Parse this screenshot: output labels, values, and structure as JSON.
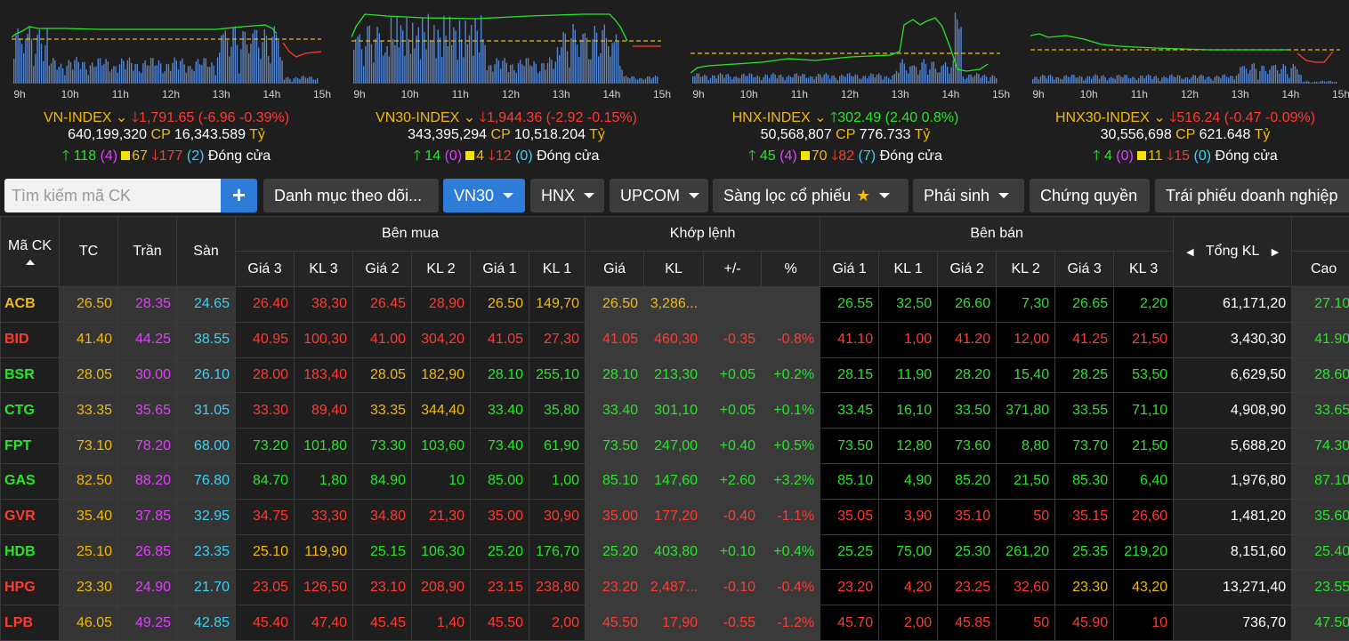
{
  "colors": {
    "ref": "#f0b90b",
    "ceil": "#e040fb",
    "floor": "#3fd0f5",
    "up": "#29e52a",
    "down": "#ff3b30",
    "accent": "#2f7bd8"
  },
  "indexes": [
    {
      "name": "VN-INDEX",
      "value": "1,791.65",
      "change": "(-6.96 -0.39%)",
      "dir": "down",
      "volume": "640,199,320",
      "cp_label": "CP",
      "value_bn": "16,343.589",
      "unit": "Tỷ",
      "adv": "118",
      "adv_ceil": "(4)",
      "unch": "67",
      "dec": "177",
      "dec_floor": "(2)",
      "status": "Đóng cửa",
      "ticks": [
        "9h",
        "10h",
        "11h",
        "12h",
        "13h",
        "14h",
        "15h"
      ]
    },
    {
      "name": "VN30-INDEX",
      "value": "1,944.36",
      "change": "(-2.92 -0.15%)",
      "dir": "down",
      "volume": "343,395,294",
      "cp_label": "CP",
      "value_bn": "10,518.204",
      "unit": "Tỷ",
      "adv": "14",
      "adv_ceil": "(0)",
      "unch": "4",
      "dec": "12",
      "dec_floor": "(0)",
      "status": "Đóng cửa",
      "ticks": [
        "9h",
        "10h",
        "11h",
        "12h",
        "13h",
        "14h",
        "15h"
      ]
    },
    {
      "name": "HNX-INDEX",
      "value": "302.49",
      "change": "(2.40 0.8%)",
      "dir": "up",
      "volume": "50,568,807",
      "cp_label": "CP",
      "value_bn": "776.733",
      "unit": "Tỷ",
      "adv": "45",
      "adv_ceil": "(4)",
      "unch": "70",
      "dec": "82",
      "dec_floor": "(7)",
      "status": "Đóng cửa",
      "ticks": [
        "9h",
        "10h",
        "11h",
        "12h",
        "13h",
        "14h",
        "15h"
      ]
    },
    {
      "name": "HNX30-INDEX",
      "value": "516.24",
      "change": "(-0.47 -0.09%)",
      "dir": "down",
      "volume": "30,556,698",
      "cp_label": "CP",
      "value_bn": "621.648",
      "unit": "Tỷ",
      "adv": "4",
      "adv_ceil": "(0)",
      "unch": "11",
      "dec": "15",
      "dec_floor": "(0)",
      "status": "Đóng cửa",
      "ticks": [
        "9h",
        "10h",
        "11h",
        "12h",
        "13h",
        "14h",
        "15h"
      ]
    }
  ],
  "toolbar": {
    "search_placeholder": "Tìm kiếm mã CK",
    "add_label": "+",
    "watchlist": "Danh mục theo dõi...",
    "vn30": "VN30",
    "hnx": "HNX",
    "upcom": "UPCOM",
    "screener": "Sàng lọc cổ phiếu",
    "derivatives": "Phái sinh",
    "warrants": "Chứng quyền",
    "bonds": "Trái phiếu doanh nghiệp"
  },
  "table": {
    "h_symbol": "Mã CK",
    "h_ref": "TC",
    "h_ceil": "Trần",
    "h_floor": "Sàn",
    "h_bid": "Bên mua",
    "h_match": "Khớp lệnh",
    "h_ask": "Bên bán",
    "h_total": "Tổng KL",
    "h_high": "Cao",
    "h_p3": "Giá 3",
    "h_v3": "KL 3",
    "h_p2": "Giá 2",
    "h_v2": "KL 2",
    "h_p1": "Giá 1",
    "h_v1": "KL 1",
    "h_mp": "Giá",
    "h_mv": "KL",
    "h_chg": "+/-",
    "h_pct": "%",
    "h_a1": "Giá 1",
    "h_av1": "KL 1",
    "h_a2": "Giá 2",
    "h_av2": "KL 2",
    "h_a3": "Giá 3",
    "h_av3": "KL 3",
    "rows": [
      {
        "sym": "ACB",
        "tc": "26.50",
        "tran": "28.35",
        "san": "24.65",
        "bp3": "26.40",
        "bv3": "38,30",
        "bp2": "26.45",
        "bv2": "28,90",
        "bp1": "26.50",
        "bv1": "149,70",
        "mp": "26.50",
        "mv": "3,286...",
        "chg": "",
        "pct": "",
        "ap1": "26.55",
        "av1": "32,50",
        "ap2": "26.60",
        "av2": "7,30",
        "ap3": "26.65",
        "av3": "2,20",
        "total": "61,171,20",
        "high": "27.10"
      },
      {
        "sym": "BID",
        "tc": "41.40",
        "tran": "44.25",
        "san": "38.55",
        "bp3": "40.95",
        "bv3": "100,30",
        "bp2": "41.00",
        "bv2": "304,20",
        "bp1": "41.05",
        "bv1": "27,30",
        "mp": "41.05",
        "mv": "460,30",
        "chg": "-0.35",
        "pct": "-0.8%",
        "ap1": "41.10",
        "av1": "1,00",
        "ap2": "41.20",
        "av2": "12,00",
        "ap3": "41.25",
        "av3": "21,50",
        "total": "3,430,30",
        "high": "41.90"
      },
      {
        "sym": "BSR",
        "tc": "28.05",
        "tran": "30.00",
        "san": "26.10",
        "bp3": "28.00",
        "bv3": "183,40",
        "bp2": "28.05",
        "bv2": "182,90",
        "bp1": "28.10",
        "bv1": "255,10",
        "mp": "28.10",
        "mv": "213,30",
        "chg": "+0.05",
        "pct": "+0.2%",
        "ap1": "28.15",
        "av1": "11,90",
        "ap2": "28.20",
        "av2": "15,40",
        "ap3": "28.25",
        "av3": "53,50",
        "total": "6,629,50",
        "high": "28.60"
      },
      {
        "sym": "CTG",
        "tc": "33.35",
        "tran": "35.65",
        "san": "31.05",
        "bp3": "33.30",
        "bv3": "89,40",
        "bp2": "33.35",
        "bv2": "344,40",
        "bp1": "33.40",
        "bv1": "35,80",
        "mp": "33.40",
        "mv": "301,10",
        "chg": "+0.05",
        "pct": "+0.1%",
        "ap1": "33.45",
        "av1": "16,10",
        "ap2": "33.50",
        "av2": "371,80",
        "ap3": "33.55",
        "av3": "71,10",
        "total": "4,908,90",
        "high": "33.65"
      },
      {
        "sym": "FPT",
        "tc": "73.10",
        "tran": "78.20",
        "san": "68.00",
        "bp3": "73.20",
        "bv3": "101,80",
        "bp2": "73.30",
        "bv2": "103,60",
        "bp1": "73.40",
        "bv1": "61,90",
        "mp": "73.50",
        "mv": "247,00",
        "chg": "+0.40",
        "pct": "+0.5%",
        "ap1": "73.50",
        "av1": "12,80",
        "ap2": "73.60",
        "av2": "8,80",
        "ap3": "73.70",
        "av3": "21,50",
        "total": "5,688,20",
        "high": "74.30"
      },
      {
        "sym": "GAS",
        "tc": "82.50",
        "tran": "88.20",
        "san": "76.80",
        "bp3": "84.70",
        "bv3": "1,80",
        "bp2": "84.90",
        "bv2": "10",
        "bp1": "85.00",
        "bv1": "1,00",
        "mp": "85.10",
        "mv": "147,60",
        "chg": "+2.60",
        "pct": "+3.2%",
        "ap1": "85.10",
        "av1": "4,90",
        "ap2": "85.20",
        "av2": "21,50",
        "ap3": "85.30",
        "av3": "6,40",
        "total": "1,976,80",
        "high": "87.10"
      },
      {
        "sym": "GVR",
        "tc": "35.40",
        "tran": "37.85",
        "san": "32.95",
        "bp3": "34.75",
        "bv3": "33,30",
        "bp2": "34.80",
        "bv2": "21,30",
        "bp1": "35.00",
        "bv1": "30,90",
        "mp": "35.00",
        "mv": "177,20",
        "chg": "-0.40",
        "pct": "-1.1%",
        "ap1": "35.05",
        "av1": "3,90",
        "ap2": "35.10",
        "av2": "50",
        "ap3": "35.15",
        "av3": "26,60",
        "total": "1,481,20",
        "high": "35.60"
      },
      {
        "sym": "HDB",
        "tc": "25.10",
        "tran": "26.85",
        "san": "23.35",
        "bp3": "25.10",
        "bv3": "119,90",
        "bp2": "25.15",
        "bv2": "106,30",
        "bp1": "25.20",
        "bv1": "176,70",
        "mp": "25.20",
        "mv": "403,80",
        "chg": "+0.10",
        "pct": "+0.4%",
        "ap1": "25.25",
        "av1": "75,00",
        "ap2": "25.30",
        "av2": "261,20",
        "ap3": "25.35",
        "av3": "219,20",
        "total": "8,151,60",
        "high": "25.40"
      },
      {
        "sym": "HPG",
        "tc": "23.30",
        "tran": "24.90",
        "san": "21.70",
        "bp3": "23.05",
        "bv3": "126,50",
        "bp2": "23.10",
        "bv2": "208,90",
        "bp1": "23.15",
        "bv1": "238,80",
        "mp": "23.20",
        "mv": "2,487...",
        "chg": "-0.10",
        "pct": "-0.4%",
        "ap1": "23.20",
        "av1": "4,20",
        "ap2": "23.25",
        "av2": "32,60",
        "ap3": "23.30",
        "av3": "43,20",
        "total": "13,271,40",
        "high": "23.55"
      },
      {
        "sym": "LPB",
        "tc": "46.05",
        "tran": "49.25",
        "san": "42.85",
        "bp3": "45.40",
        "bv3": "47,40",
        "bp2": "45.45",
        "bv2": "1,40",
        "bp1": "45.50",
        "bv1": "2,00",
        "mp": "45.50",
        "mv": "17,90",
        "chg": "-0.55",
        "pct": "-1.2%",
        "ap1": "45.70",
        "av1": "2,00",
        "ap2": "45.85",
        "av2": "50",
        "ap3": "45.90",
        "av3": "10",
        "total": "736,70",
        "high": "47.50"
      }
    ]
  }
}
